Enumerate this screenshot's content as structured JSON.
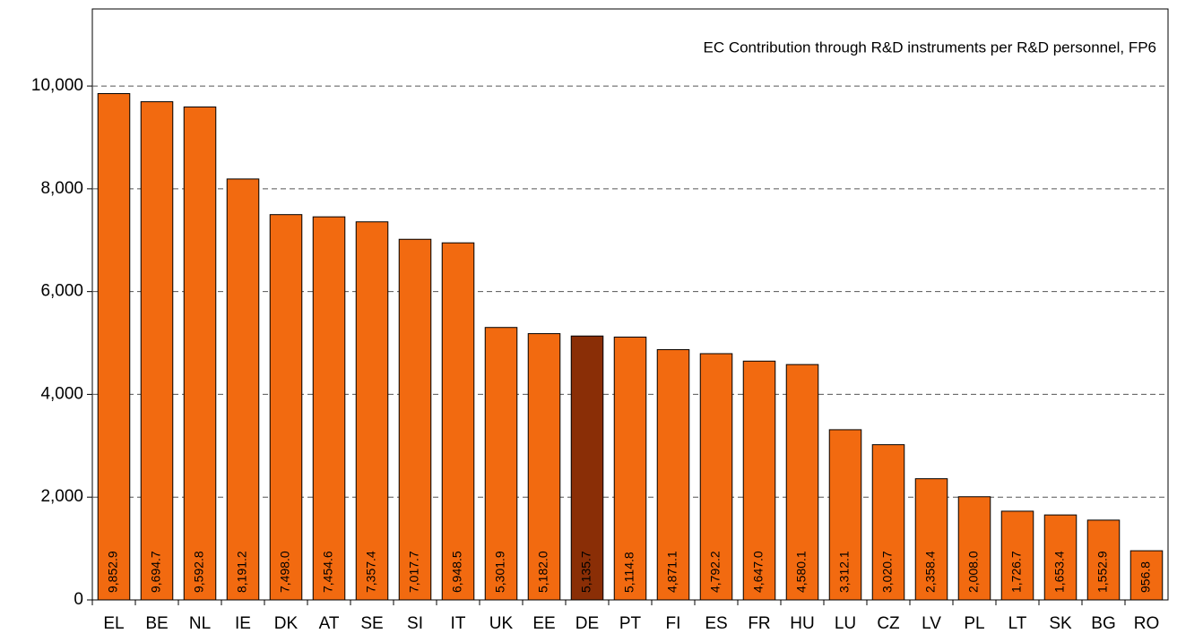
{
  "chart_data": {
    "type": "bar",
    "title": "EC Contribution through R&D instruments per R&D personnel, FP6",
    "categories": [
      "EL",
      "BE",
      "NL",
      "IE",
      "DK",
      "AT",
      "SE",
      "SI",
      "IT",
      "UK",
      "EE",
      "DE",
      "PT",
      "FI",
      "ES",
      "FR",
      "HU",
      "LU",
      "CZ",
      "LV",
      "PL",
      "LT",
      "SK",
      "BG",
      "RO"
    ],
    "values": [
      9852.9,
      9694.7,
      9592.8,
      8191.2,
      7498.0,
      7454.6,
      7357.4,
      7017.7,
      6948.5,
      5301.9,
      5182.0,
      5135.7,
      5114.8,
      4871.1,
      4792.2,
      4647.0,
      4580.1,
      3312.1,
      3020.7,
      2358.4,
      2008.0,
      1726.7,
      1653.4,
      1552.9,
      956.8
    ],
    "value_labels": [
      "9,852.9",
      "9,694.7",
      "9,592.8",
      "8,191.2",
      "7,498.0",
      "7,454.6",
      "7,357.4",
      "7,017.7",
      "6,948.5",
      "5,301.9",
      "5,182.0",
      "5,135.7",
      "5,114.8",
      "4,871.1",
      "4,792.2",
      "4,647.0",
      "4,580.1",
      "3,312.1",
      "3,020.7",
      "2,358.4",
      "2,008.0",
      "1,726.7",
      "1,653.4",
      "1,552.9",
      "956.8"
    ],
    "colors": [
      "#f26a10",
      "#f26a10",
      "#f26a10",
      "#f26a10",
      "#f26a10",
      "#f26a10",
      "#f26a10",
      "#f26a10",
      "#f26a10",
      "#f26a10",
      "#f26a10",
      "#8a2e06",
      "#f26a10",
      "#f26a10",
      "#f26a10",
      "#f26a10",
      "#f26a10",
      "#f26a10",
      "#f26a10",
      "#f26a10",
      "#f26a10",
      "#f26a10",
      "#f26a10",
      "#f26a10",
      "#f26a10"
    ],
    "ylim": [
      0,
      11500
    ],
    "yticks": [
      0,
      {
        "value": 2000,
        "label": "2,000"
      },
      {
        "value": 4000,
        "label": "4,000"
      },
      {
        "value": 6000,
        "label": "6,000"
      },
      {
        "value": 8000,
        "label": "8,000"
      },
      {
        "value": 10000,
        "label": "10,000"
      }
    ],
    "grid": true
  }
}
